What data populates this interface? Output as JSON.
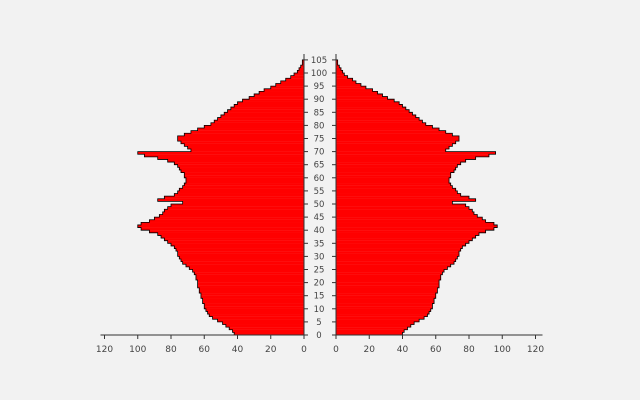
{
  "chart_data": {
    "type": "bar",
    "subtype": "population-pyramid",
    "title": "",
    "xlabel": "",
    "ylabel": "",
    "grid": false,
    "legend": "none",
    "colors": {
      "bars": "#ff0000",
      "edge": "#000000",
      "axis": "#333333"
    },
    "age_ticks": [
      "0",
      "5",
      "10",
      "15",
      "20",
      "25",
      "30",
      "35",
      "40",
      "45",
      "50",
      "55",
      "60",
      "65",
      "70",
      "75",
      "80",
      "85",
      "90",
      "95",
      "100",
      "105"
    ],
    "left_ticks": [
      "120",
      "100",
      "80",
      "60",
      "40",
      "20",
      "0"
    ],
    "right_ticks": [
      "0",
      "20",
      "40",
      "60",
      "80",
      "100",
      "120"
    ],
    "xlim": [
      0,
      120
    ],
    "age_range": [
      0,
      106
    ],
    "series": [
      {
        "name": "",
        "side": "left",
        "values": [
          42,
          43,
          45,
          47,
          49,
          52,
          55,
          57,
          58,
          59,
          60,
          60,
          61,
          61,
          62,
          62,
          63,
          63,
          64,
          64,
          64,
          65,
          65,
          66,
          67,
          69,
          71,
          73,
          74,
          75,
          76,
          76,
          77,
          78,
          80,
          82,
          84,
          86,
          88,
          93,
          98,
          100,
          98,
          93,
          90,
          87,
          85,
          84,
          82,
          80,
          73,
          88,
          84,
          78,
          76,
          75,
          73,
          72,
          71,
          71,
          72,
          72,
          74,
          75,
          76,
          78,
          82,
          88,
          96,
          100,
          68,
          70,
          72,
          74,
          76,
          76,
          72,
          68,
          64,
          60,
          56,
          54,
          52,
          50,
          48,
          46,
          44,
          42,
          40,
          37,
          33,
          30,
          27,
          24,
          20,
          17,
          14,
          11,
          8,
          6,
          4,
          3,
          2,
          1,
          1,
          0
        ]
      },
      {
        "name": "",
        "side": "right",
        "values": [
          40,
          41,
          43,
          45,
          47,
          50,
          53,
          55,
          56,
          57,
          58,
          58,
          59,
          59,
          60,
          60,
          61,
          61,
          62,
          62,
          62,
          63,
          63,
          64,
          65,
          67,
          69,
          71,
          72,
          73,
          74,
          74,
          75,
          76,
          78,
          80,
          82,
          84,
          86,
          90,
          95,
          97,
          95,
          90,
          88,
          85,
          83,
          82,
          80,
          78,
          70,
          84,
          80,
          75,
          73,
          72,
          70,
          69,
          68,
          68,
          69,
          69,
          71,
          72,
          73,
          75,
          78,
          84,
          92,
          96,
          66,
          68,
          70,
          72,
          74,
          74,
          70,
          66,
          62,
          58,
          54,
          52,
          50,
          48,
          46,
          44,
          42,
          40,
          38,
          35,
          31,
          28,
          25,
          22,
          18,
          15,
          12,
          10,
          7,
          5,
          4,
          3,
          2,
          1,
          1,
          0
        ]
      }
    ]
  }
}
